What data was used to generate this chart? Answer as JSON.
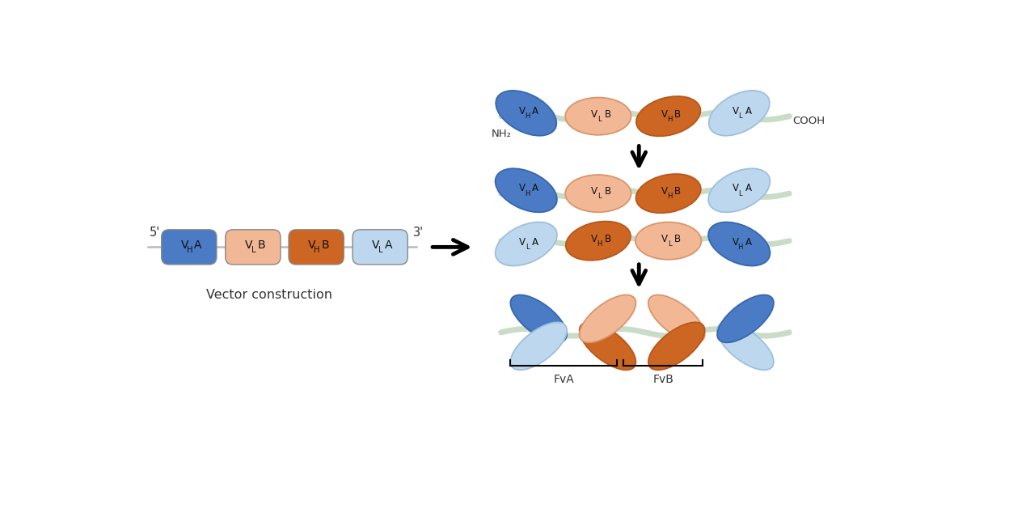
{
  "colors": {
    "blue_dark": "#4A7BC4",
    "blue_light": "#BDD7EE",
    "orange_dark": "#CC6622",
    "orange_light": "#F2B896",
    "linker_color": "#C8DCC8",
    "bg": "#FFFFFF"
  },
  "text": {
    "vector_label": "Vector construction",
    "five_prime": "5'",
    "three_prime": "3'",
    "NH2": "NH₂",
    "COOH": "COOH",
    "FvA": "FvA",
    "FvB": "FvB"
  },
  "layout": {
    "fig_w": 12.69,
    "fig_h": 6.39,
    "xlim": [
      0,
      12.69
    ],
    "ylim": [
      0,
      6.39
    ]
  }
}
